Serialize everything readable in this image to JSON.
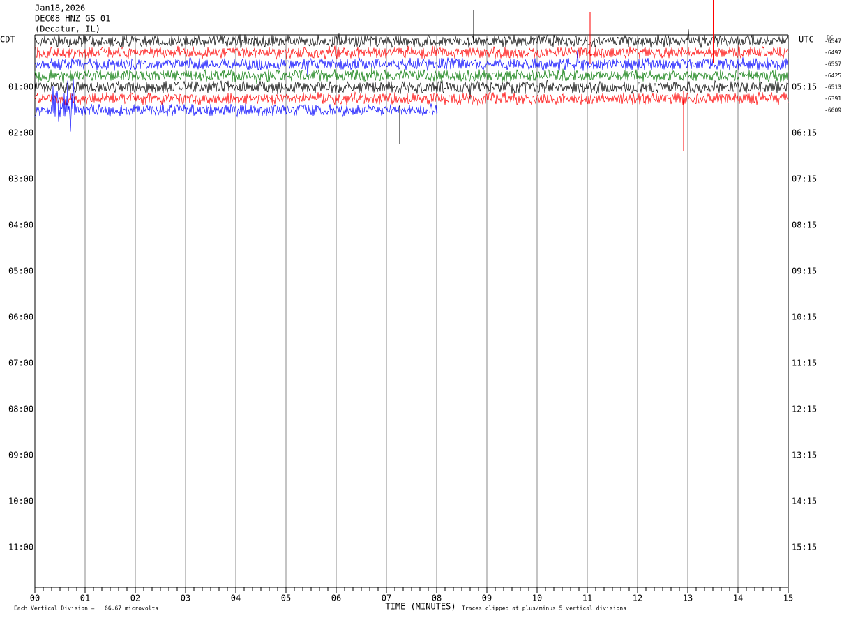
{
  "header": {
    "date": "Jan18,2026",
    "station": "DEC08 HNZ GS 01",
    "location": "(Decatur, IL)"
  },
  "left_axis": {
    "title": "CDT",
    "labels": [
      "01:00",
      "02:00",
      "03:00",
      "04:00",
      "05:00",
      "06:00",
      "07:00",
      "08:00",
      "09:00",
      "10:00",
      "11:00"
    ]
  },
  "right_axis": {
    "title": "UTC",
    "labels": [
      "05:15",
      "06:15",
      "07:15",
      "08:15",
      "09:15",
      "10:15",
      "11:15",
      "12:15",
      "13:15",
      "14:15",
      "15:15"
    ]
  },
  "dc": {
    "title": "DC",
    "values": [
      -6547,
      -6497,
      -6557,
      -6425,
      -6513,
      -6391,
      -6609
    ]
  },
  "x_axis": {
    "title": "TIME (MINUTES)",
    "labels": [
      "00",
      "01",
      "02",
      "03",
      "04",
      "05",
      "06",
      "07",
      "08",
      "09",
      "10",
      "11",
      "12",
      "13",
      "14",
      "15"
    ]
  },
  "footer": {
    "division": "Each Vertical Division =   66.67 microvolts",
    "clip": "Traces clipped at plus/minus 5 vertical divisions"
  }
}
